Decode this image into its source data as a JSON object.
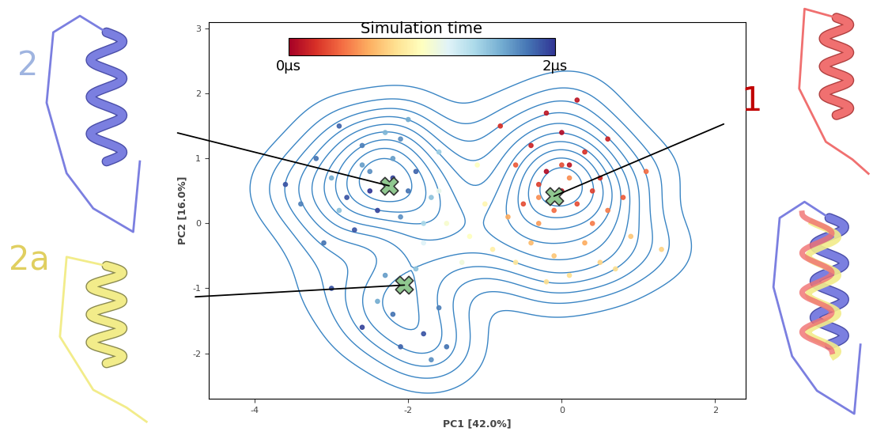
{
  "chart_data": {
    "type": "scatter",
    "xlabel": "PC1 [42.0%]",
    "ylabel": "PC2 [16.0%]",
    "xlim": [
      -4.6,
      2.4
    ],
    "xticks": [
      -4,
      -2,
      0,
      2
    ],
    "ylim": [
      -2.7,
      3.1
    ],
    "yticks": [
      -2,
      -1,
      0,
      1,
      2,
      3
    ],
    "points": {
      "x": [
        -0.2,
        0.1,
        -0.4,
        0.3,
        0.0,
        -0.3,
        0.2,
        0.5,
        -0.6,
        0.0,
        -0.1,
        0.4,
        -0.5,
        0.6,
        -0.2,
        0.8,
        0.1,
        -0.3,
        0.3,
        -0.1,
        0.5,
        0.1,
        -0.4,
        0.9,
        0.7,
        -0.6,
        1.1,
        -0.8,
        0.2,
        -0.3,
        0.0,
        0.4,
        -0.7,
        1.3,
        -0.2,
        0.6,
        -1.2,
        -1.0,
        -1.5,
        -1.3,
        -0.9,
        -1.6,
        -1.1,
        -1.8,
        -2.3,
        -2.5,
        -2.0,
        -2.8,
        -2.2,
        -2.6,
        -1.9,
        -2.4,
        -3.0,
        -2.1,
        -1.7,
        -3.2,
        -2.7,
        -2.3,
        -1.6,
        -3.4,
        -2.9,
        -2.0,
        -3.6,
        -1.8,
        -2.5,
        -2.2,
        -2.6,
        -2.9,
        -2.1,
        -3.1,
        -2.0,
        -2.2,
        -1.8,
        -2.4,
        -1.6,
        -2.1,
        -1.9,
        -2.6,
        -1.5,
        -2.3,
        -3.0,
        -1.7
      ],
      "y": [
        0.8,
        0.9,
        1.2,
        1.1,
        0.5,
        0.6,
        0.3,
        0.7,
        0.9,
        1.4,
        0.2,
        0.0,
        0.3,
        1.3,
        1.7,
        0.4,
        0.7,
        0.0,
        -0.3,
        -0.5,
        -0.6,
        -0.8,
        -0.3,
        -0.2,
        -0.7,
        -0.6,
        0.8,
        1.5,
        1.9,
        0.4,
        0.9,
        0.5,
        0.1,
        -0.4,
        -0.9,
        0.2,
        -0.2,
        0.3,
        0.0,
        -0.6,
        -0.4,
        0.5,
        0.9,
        -0.3,
        0.6,
        0.8,
        0.5,
        0.4,
        1.0,
        1.2,
        0.8,
        0.2,
        0.7,
        0.1,
        0.4,
        1.0,
        -0.1,
        1.4,
        1.1,
        0.3,
        1.5,
        1.6,
        0.6,
        0.0,
        0.5,
        0.7,
        0.9,
        0.2,
        1.3,
        -0.3,
        -1.0,
        -1.4,
        -1.7,
        -1.2,
        -1.3,
        -1.9,
        -0.7,
        -1.6,
        -1.9,
        -0.8,
        -1.0,
        -2.1
      ],
      "time": [
        0.05,
        0.1,
        0.15,
        0.2,
        0.1,
        0.25,
        0.3,
        0.2,
        0.35,
        0.05,
        0.4,
        0.45,
        0.3,
        0.15,
        0.1,
        0.35,
        0.5,
        0.55,
        0.6,
        0.7,
        0.75,
        0.8,
        0.65,
        0.7,
        0.8,
        0.85,
        0.4,
        0.2,
        0.1,
        0.5,
        0.3,
        0.25,
        0.6,
        0.75,
        0.8,
        0.45,
        1.0,
        0.95,
        1.05,
        1.1,
        0.9,
        1.15,
        1.0,
        1.2,
        1.6,
        1.7,
        1.8,
        1.9,
        1.65,
        1.75,
        1.85,
        1.95,
        1.6,
        1.7,
        1.5,
        1.8,
        1.9,
        1.55,
        1.45,
        1.75,
        1.85,
        1.6,
        1.9,
        1.4,
        2.0,
        1.95,
        1.65,
        1.5,
        1.7,
        1.8,
        1.7,
        1.8,
        1.9,
        1.6,
        1.75,
        1.85,
        1.5,
        1.95,
        1.8,
        1.65,
        1.9,
        1.7
      ]
    },
    "colorbar": {
      "label": "Simulation time",
      "range": [
        0,
        2
      ],
      "ticks": [
        {
          "value": 0,
          "label": "0µs"
        },
        {
          "value": 2,
          "label": "2µs"
        }
      ]
    },
    "markers": [
      {
        "label": "2",
        "x": -2.25,
        "y": 0.58
      },
      {
        "label": "2a",
        "x": -2.05,
        "y": -0.95
      },
      {
        "label": "1",
        "x": -0.1,
        "y": 0.42
      }
    ],
    "marker": "X",
    "color": "#90c890"
  }
}
